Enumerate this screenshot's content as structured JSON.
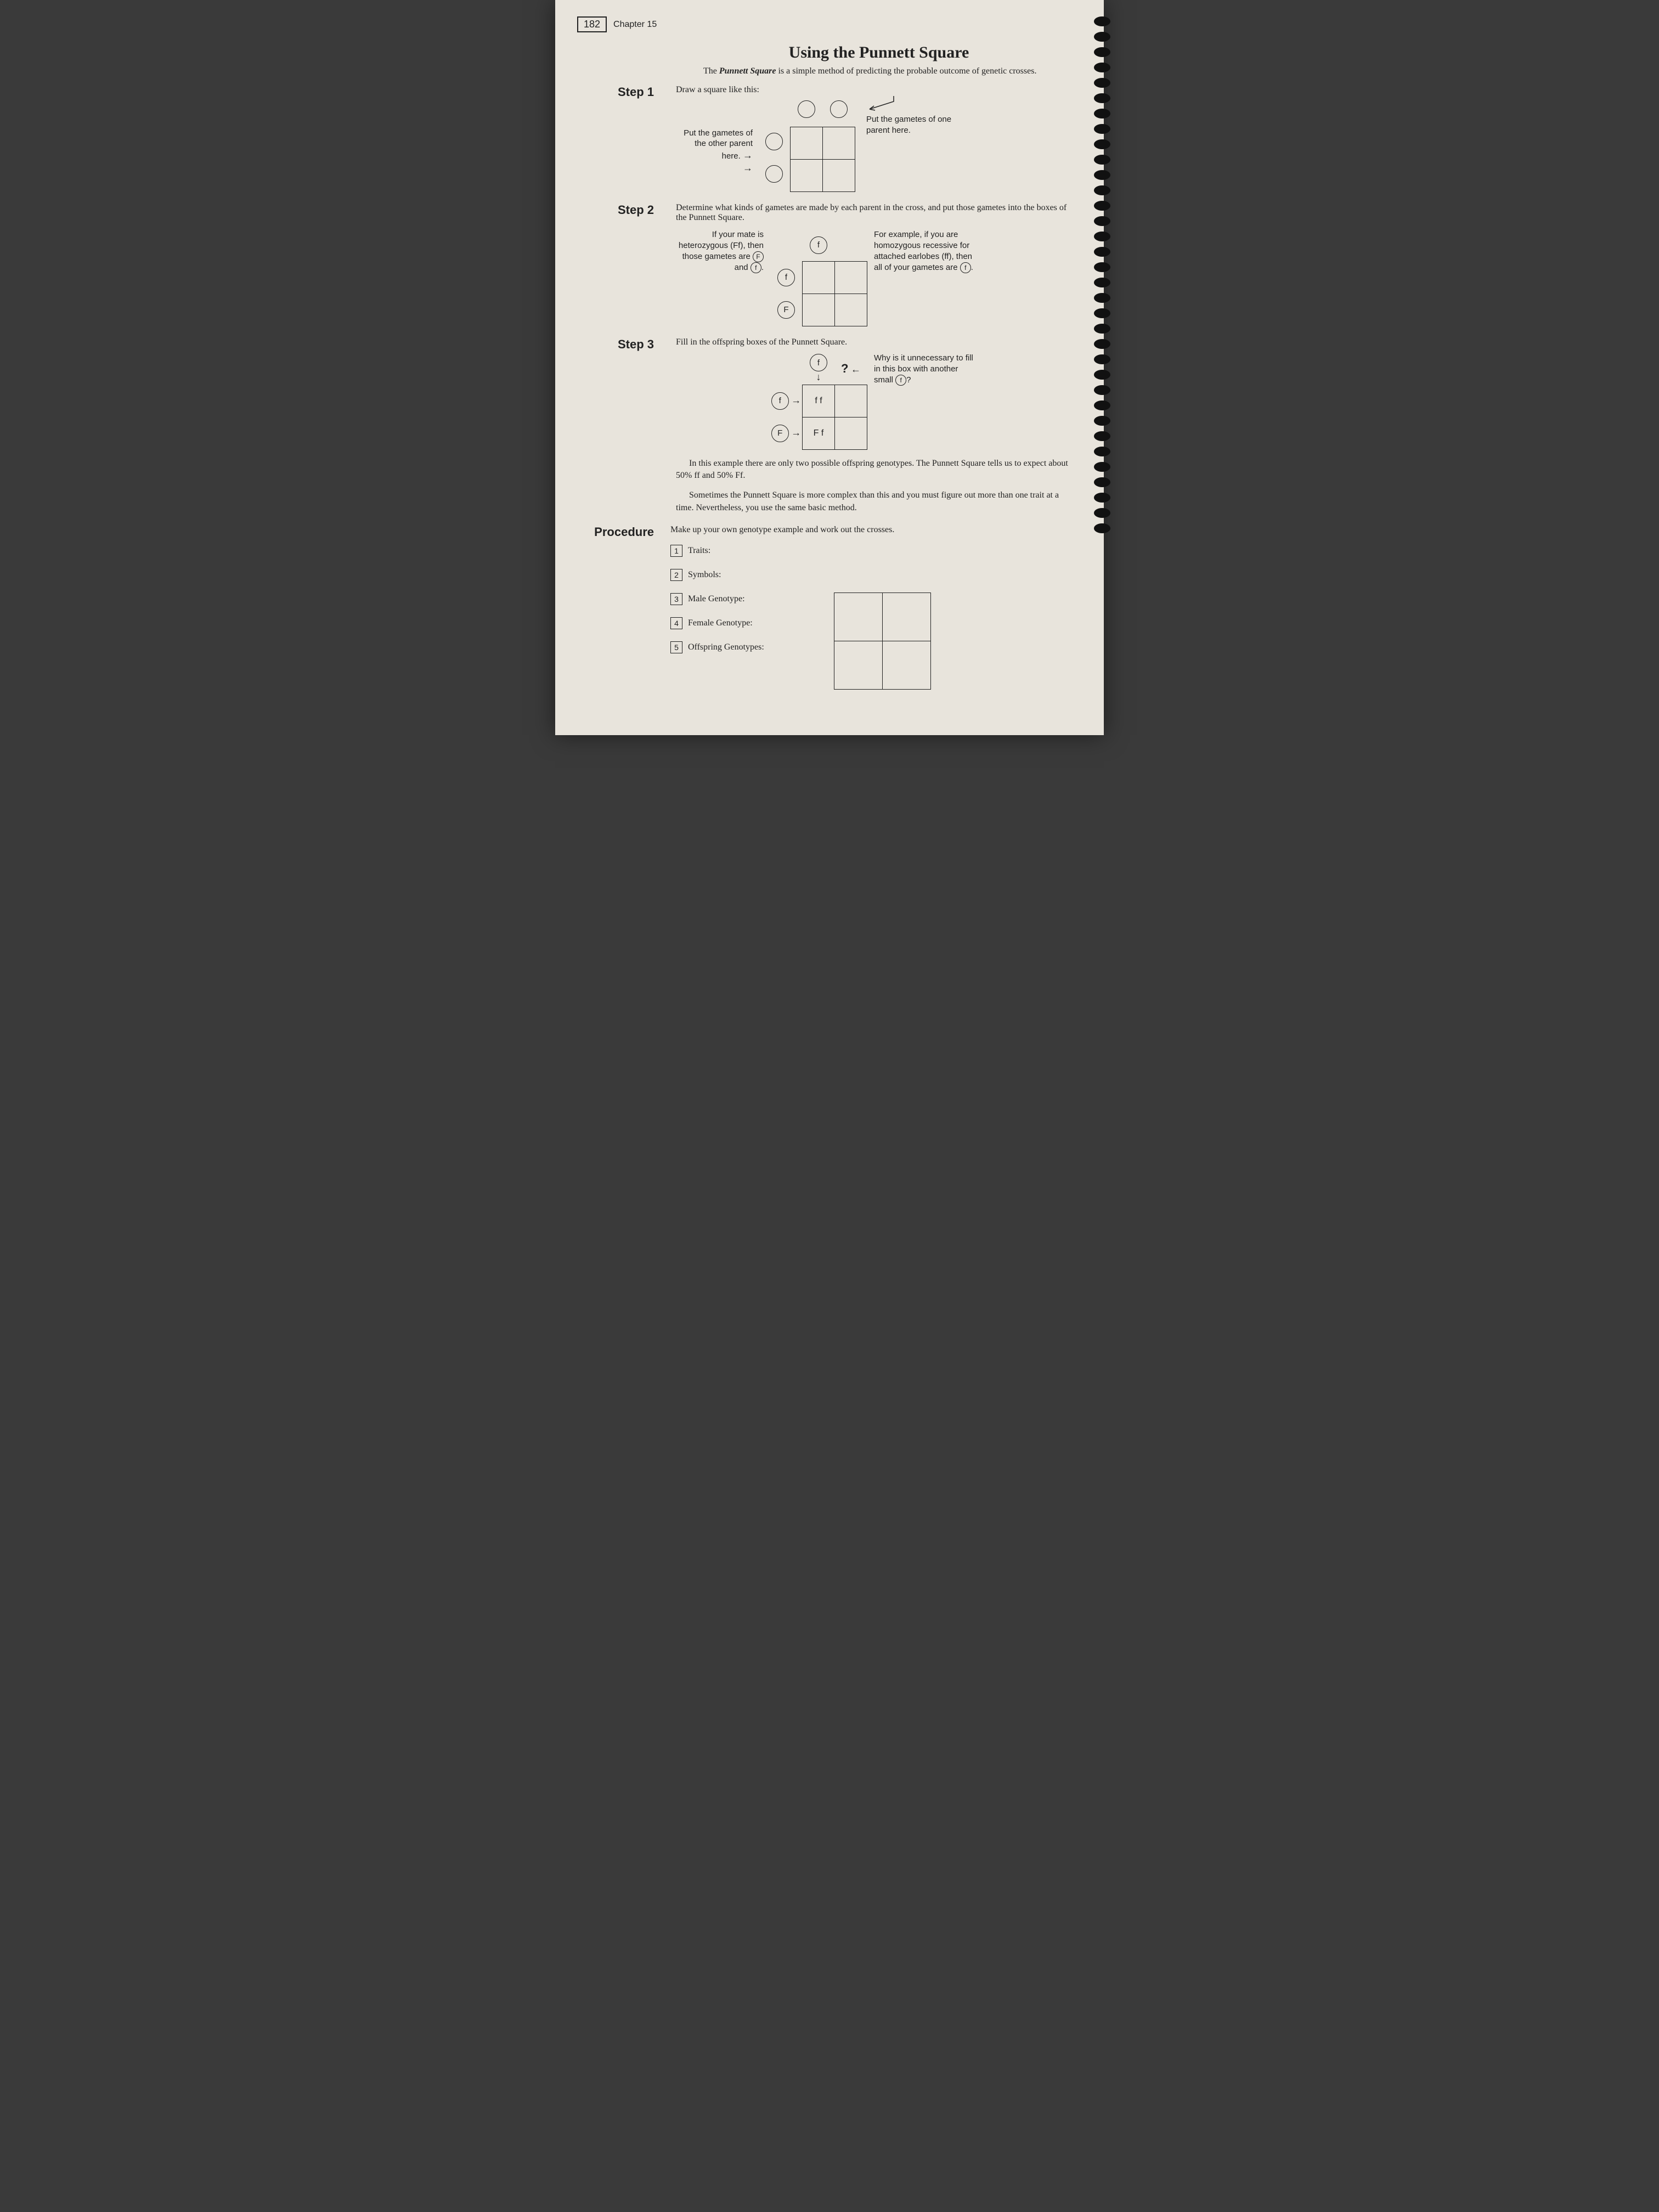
{
  "page": {
    "number": "182",
    "chapter": "Chapter 15",
    "title": "Using the Punnett Square",
    "intro_html": "The <b><i>Punnett Square</i></b> is a simple method of predicting the probable outcome of genetic crosses."
  },
  "step1": {
    "label": "Step 1",
    "instruction": "Draw a square like this:",
    "left_note": "Put the gametes of the other parent here.",
    "right_note": "Put the gametes of one parent here."
  },
  "step2": {
    "label": "Step 2",
    "instruction": "Determine what kinds of gametes are made by each parent in the cross, and put those gametes into the boxes of the Punnett Square.",
    "left_note_prefix": "If your mate is heterozygous (Ff), then those gametes are ",
    "left_g1": "F",
    "left_and": " and ",
    "left_g2": "f",
    "left_period": ".",
    "right_note_prefix": "For example, if you are homozygous recessive for attached earlobes (ff), then all of your gametes are ",
    "right_g": "f",
    "right_period": ".",
    "top_allele": "f",
    "side_allele1": "f",
    "side_allele2": "F"
  },
  "step3": {
    "label": "Step 3",
    "instruction": "Fill in the offspring boxes of the Punnett Square.",
    "top_allele": "f",
    "side_allele1": "f",
    "side_allele2": "F",
    "cell1": "f f",
    "cell2": "F f",
    "qmark": "?",
    "right_note_prefix": "Why is it unnecessary to fill in this box with another small ",
    "right_g": "f",
    "right_q": "?",
    "para1": "In this example there are only two possible offspring genotypes. The Punnett Square tells us to expect about 50% ff and 50% Ff.",
    "para2": "Sometimes the Punnett Square is more complex than this and you must figure out more than one trait at a time. Nevertheless, you use the same basic method."
  },
  "procedure": {
    "label": "Procedure",
    "instruction": "Make up your own genotype example and work out the crosses.",
    "items": [
      {
        "n": "1",
        "label": "Traits:"
      },
      {
        "n": "2",
        "label": "Symbols:"
      },
      {
        "n": "3",
        "label": "Male Genotype:"
      },
      {
        "n": "4",
        "label": "Female Genotype:"
      },
      {
        "n": "5",
        "label": "Offspring Genotypes:"
      }
    ]
  },
  "colors": {
    "page_bg": "#e8e4dc",
    "text": "#222222",
    "border": "#222222"
  }
}
